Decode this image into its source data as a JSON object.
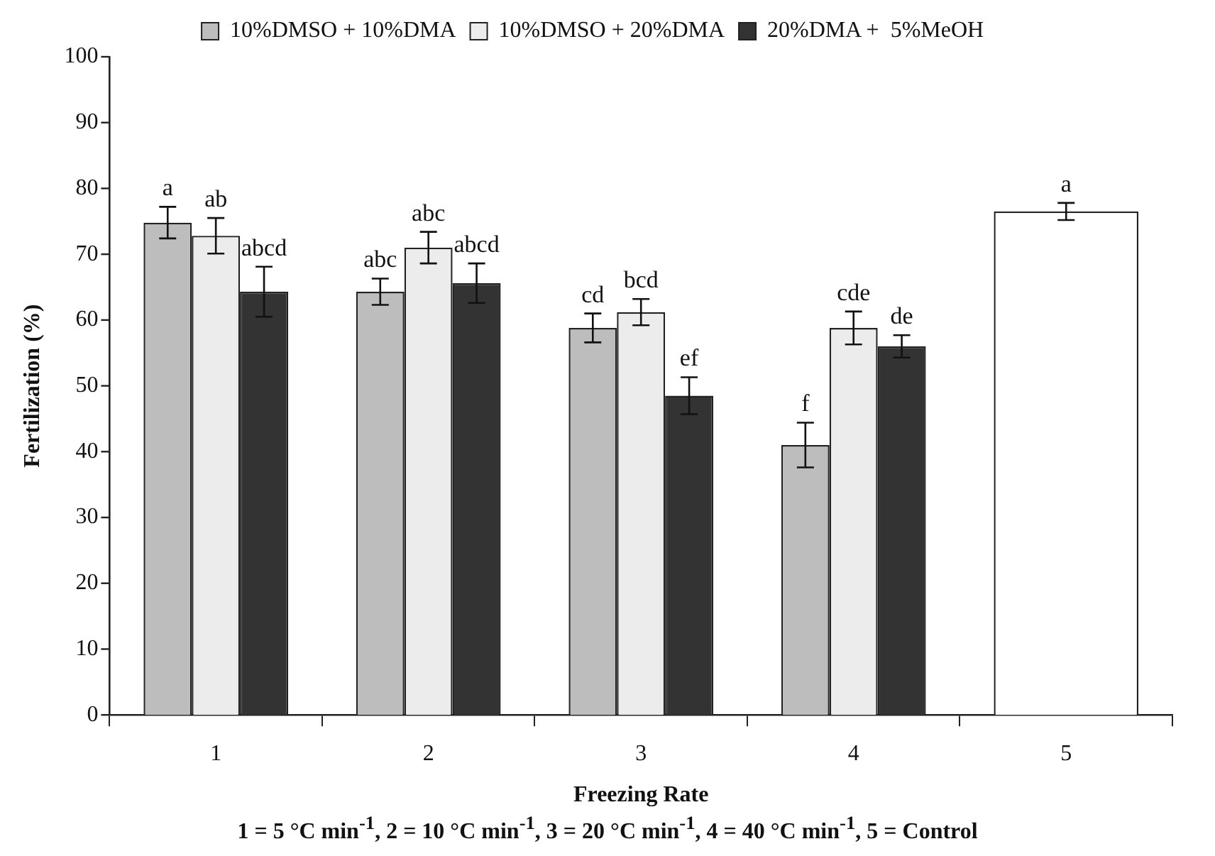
{
  "chart_data": {
    "type": "bar",
    "xlabel": "Freezing Rate",
    "ylabel": "Fertilization (%)",
    "categories": [
      "1",
      "2",
      "3",
      "4",
      "5"
    ],
    "series": [
      {
        "name": "10%DMSO + 10%DMA",
        "color": "#bdbdbd",
        "values": [
          74.8,
          64.3,
          58.8,
          41,
          null
        ],
        "errors": [
          2.4,
          2,
          2.2,
          3.4,
          null
        ],
        "value_labels": [
          "a",
          "abc",
          "cd",
          "f",
          null
        ]
      },
      {
        "name": "10%DMSO + 20%DMA",
        "color": "#ececec",
        "values": [
          72.8,
          71,
          61.2,
          58.8,
          null
        ],
        "errors": [
          2.7,
          2.4,
          2,
          2.5,
          null
        ],
        "value_labels": [
          "ab",
          "abc",
          "bcd",
          "cde",
          null
        ]
      },
      {
        "name": "20%DMA +  5%MeOH",
        "color": "#333333",
        "values": [
          64.3,
          65.6,
          48.5,
          56,
          null
        ],
        "errors": [
          3.8,
          3,
          2.8,
          1.7,
          null
        ],
        "value_labels": [
          "abcd",
          "abcd",
          "ef",
          "de",
          null
        ]
      },
      {
        "color": "#ffffff",
        "values": [
          null,
          null,
          null,
          null,
          76.5
        ],
        "errors": [
          null,
          null,
          null,
          null,
          1.3
        ],
        "value_labels": [
          null,
          null,
          null,
          null,
          "a"
        ]
      }
    ],
    "ylim": [
      0,
      100
    ],
    "yticks": [
      0,
      10,
      20,
      30,
      40,
      50,
      60,
      70,
      80,
      90,
      100
    ],
    "legend": "top",
    "annotations": [
      "1 =  5 °C min$^{-1}$,   2 = 10 °C min$^{-1}$,   3 = 20 °C min$^{-1}$,   4 = 40 °C min$^{-1}$,   5 = Control"
    ]
  }
}
